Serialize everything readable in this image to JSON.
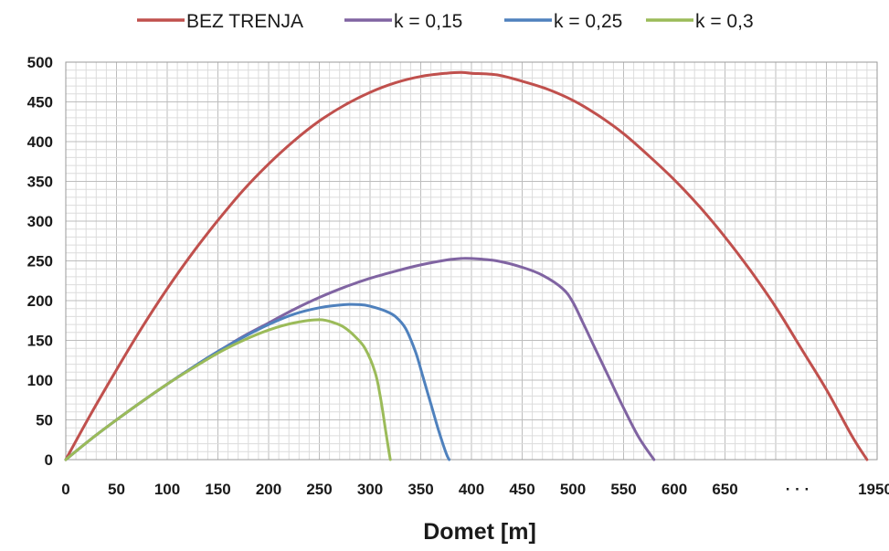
{
  "chart_data": {
    "type": "line",
    "title": "",
    "xlabel": "Domet [m]",
    "ylabel": "",
    "xlim": [
      0,
      800
    ],
    "ylim": [
      0,
      500
    ],
    "x_tick_labels": [
      "0",
      "50",
      "100",
      "150",
      "200",
      "250",
      "300",
      "350",
      "400",
      "450",
      "500",
      "550",
      "600",
      "650",
      "· · ·",
      "1950"
    ],
    "y_tick_labels": [
      "0",
      "50",
      "100",
      "150",
      "200",
      "250",
      "300",
      "350",
      "400",
      "450",
      "500"
    ],
    "grid": true,
    "legend_position": "top",
    "series": [
      {
        "name": "BEZ TRENJA",
        "color": "#c0504d",
        "x": [
          0,
          25,
          50,
          75,
          100,
          125,
          150,
          175,
          200,
          225,
          250,
          275,
          300,
          325,
          350,
          375,
          390,
          400,
          425,
          450,
          475,
          500,
          525,
          550,
          575,
          600,
          625,
          650,
          675,
          700,
          725,
          750,
          775,
          790
        ],
        "y": [
          0,
          58,
          113,
          166,
          215,
          260,
          301,
          339,
          372,
          401,
          426,
          446,
          462,
          474,
          482,
          486,
          487,
          486,
          484,
          476,
          466,
          452,
          433,
          410,
          382,
          352,
          318,
          280,
          238,
          192,
          140,
          88,
          30,
          0
        ]
      },
      {
        "name": "k = 0,15",
        "color": "#8064a2",
        "x": [
          0,
          25,
          50,
          75,
          100,
          125,
          150,
          175,
          200,
          225,
          250,
          275,
          300,
          325,
          350,
          375,
          390,
          400,
          425,
          450,
          470,
          490,
          500,
          510,
          520,
          535,
          550,
          565,
          580
        ],
        "y": [
          0,
          26,
          50,
          73,
          95,
          116,
          136,
          155,
          172,
          189,
          204,
          217,
          228,
          237,
          245,
          251,
          253,
          253,
          250,
          242,
          232,
          215,
          198,
          172,
          145,
          105,
          65,
          28,
          0
        ]
      },
      {
        "name": "k = 0,25",
        "color": "#4f81bd",
        "x": [
          0,
          25,
          50,
          75,
          100,
          125,
          150,
          175,
          200,
          225,
          250,
          275,
          290,
          300,
          315,
          325,
          335,
          345,
          352,
          360,
          368,
          375,
          378
        ],
        "y": [
          0,
          26,
          50,
          73,
          95,
          116,
          136,
          154,
          170,
          183,
          191,
          195,
          195,
          193,
          187,
          180,
          165,
          135,
          105,
          70,
          35,
          8,
          0
        ]
      },
      {
        "name": "k = 0,3",
        "color": "#9bbb59",
        "x": [
          0,
          25,
          50,
          75,
          100,
          125,
          150,
          175,
          200,
          225,
          250,
          265,
          275,
          285,
          295,
          305,
          310,
          315,
          318,
          320
        ],
        "y": [
          0,
          26,
          50,
          73,
          95,
          115,
          134,
          150,
          163,
          172,
          176,
          172,
          166,
          155,
          140,
          110,
          80,
          40,
          15,
          0
        ]
      }
    ]
  }
}
